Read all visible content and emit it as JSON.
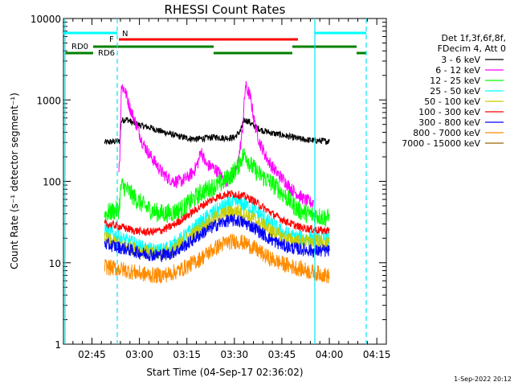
{
  "chart_data": {
    "type": "line",
    "title": "RHESSI Count Rates",
    "xlabel": "Start Time (04-Sep-17 02:36:02)",
    "ylabel": "Count Rate (s⁻¹ detector segment⁻¹)",
    "yscale": "log",
    "ylim": [
      1,
      10000
    ],
    "xlim_minutes": [
      0,
      102
    ],
    "x_ticks": [
      {
        "label": "02:45",
        "min": 9
      },
      {
        "label": "03:00",
        "min": 24
      },
      {
        "label": "03:15",
        "min": 39
      },
      {
        "label": "03:30",
        "min": 54
      },
      {
        "label": "03:45",
        "min": 69
      },
      {
        "label": "04:00",
        "min": 84
      },
      {
        "label": "04:15",
        "min": 99
      }
    ],
    "y_ticks": [
      {
        "label": "1",
        "value": 1
      },
      {
        "label": "10",
        "value": 10
      },
      {
        "label": "100",
        "value": 100
      },
      {
        "label": "1000",
        "value": 1000
      },
      {
        "label": "10000",
        "value": 10000
      }
    ],
    "legend_header": [
      "Det 1f,3f,6f,8f,",
      "FDecim 4, Att 0"
    ],
    "series": [
      {
        "name": "3 - 6 keV",
        "color": "#000000",
        "noise": 0.04,
        "points": [
          [
            13,
            300
          ],
          [
            15,
            305
          ],
          [
            17,
            310
          ],
          [
            17.8,
            310
          ],
          [
            18.3,
            560
          ],
          [
            20,
            580
          ],
          [
            22,
            520
          ],
          [
            25,
            480
          ],
          [
            28,
            450
          ],
          [
            30,
            420
          ],
          [
            33,
            390
          ],
          [
            36,
            360
          ],
          [
            39,
            340
          ],
          [
            42,
            330
          ],
          [
            45,
            340
          ],
          [
            48,
            350
          ],
          [
            51,
            340
          ],
          [
            54,
            345
          ],
          [
            56,
            420
          ],
          [
            57,
            560
          ],
          [
            58.5,
            550
          ],
          [
            60,
            480
          ],
          [
            63,
            420
          ],
          [
            66,
            390
          ],
          [
            69,
            370
          ],
          [
            72,
            350
          ],
          [
            75,
            330
          ],
          [
            78,
            320
          ],
          [
            81,
            315
          ],
          [
            84,
            310
          ]
        ]
      },
      {
        "name": "6 - 12 keV",
        "color": "#ff00ff",
        "noise": 0.08,
        "points": [
          [
            17.5,
            150
          ],
          [
            17.8,
            200
          ],
          [
            18.3,
            1500
          ],
          [
            19.5,
            1300
          ],
          [
            21,
            800
          ],
          [
            23,
            500
          ],
          [
            25,
            300
          ],
          [
            27,
            220
          ],
          [
            29,
            170
          ],
          [
            31,
            130
          ],
          [
            33,
            110
          ],
          [
            35,
            100
          ],
          [
            37,
            100
          ],
          [
            39,
            110
          ],
          [
            41,
            130
          ],
          [
            42.5,
            170
          ],
          [
            43.5,
            240
          ],
          [
            45,
            160
          ],
          [
            47,
            150
          ],
          [
            49,
            130
          ],
          [
            51,
            100
          ],
          [
            53,
            110
          ],
          [
            55,
            150
          ],
          [
            56.5,
            400
          ],
          [
            57.5,
            1500
          ],
          [
            59,
            1100
          ],
          [
            60.5,
            500
          ],
          [
            62,
            300
          ],
          [
            64,
            200
          ],
          [
            66,
            150
          ],
          [
            68,
            120
          ],
          [
            70,
            100
          ],
          [
            72,
            80
          ],
          [
            74,
            70
          ],
          [
            76,
            60
          ],
          [
            78,
            55
          ],
          [
            79,
            55
          ]
        ]
      },
      {
        "name": "12 - 25 keV",
        "color": "#00ff00",
        "noise": 0.12,
        "points": [
          [
            13,
            40
          ],
          [
            15,
            42
          ],
          [
            17.5,
            45
          ],
          [
            18.3,
            90
          ],
          [
            20,
            80
          ],
          [
            23,
            60
          ],
          [
            26,
            48
          ],
          [
            29,
            42
          ],
          [
            32,
            40
          ],
          [
            35,
            42
          ],
          [
            38,
            48
          ],
          [
            41,
            60
          ],
          [
            44,
            75
          ],
          [
            47,
            85
          ],
          [
            50,
            95
          ],
          [
            53,
            120
          ],
          [
            55,
            150
          ],
          [
            56.5,
            200
          ],
          [
            57.5,
            220
          ],
          [
            59,
            160
          ],
          [
            62,
            120
          ],
          [
            65,
            100
          ],
          [
            68,
            80
          ],
          [
            71,
            60
          ],
          [
            74,
            45
          ],
          [
            77,
            40
          ],
          [
            80,
            38
          ],
          [
            84,
            35
          ]
        ]
      },
      {
        "name": "25 - 50 keV",
        "color": "#00ffff",
        "noise": 0.1,
        "points": [
          [
            13,
            26
          ],
          [
            16,
            22
          ],
          [
            19,
            19
          ],
          [
            22,
            17
          ],
          [
            25,
            15
          ],
          [
            28,
            14
          ],
          [
            31,
            14
          ],
          [
            34,
            16
          ],
          [
            37,
            19
          ],
          [
            40,
            24
          ],
          [
            43,
            30
          ],
          [
            46,
            38
          ],
          [
            49,
            45
          ],
          [
            52,
            52
          ],
          [
            55,
            56
          ],
          [
            57,
            52
          ],
          [
            60,
            45
          ],
          [
            63,
            36
          ],
          [
            66,
            29
          ],
          [
            69,
            24
          ],
          [
            72,
            21
          ],
          [
            75,
            20
          ],
          [
            78,
            20
          ],
          [
            81,
            20
          ],
          [
            84,
            20
          ]
        ]
      },
      {
        "name": "50 - 100 keV",
        "color": "#cccc00",
        "noise": 0.09,
        "points": [
          [
            13,
            20
          ],
          [
            16,
            18
          ],
          [
            19,
            16
          ],
          [
            22,
            15
          ],
          [
            25,
            14
          ],
          [
            28,
            13
          ],
          [
            31,
            13
          ],
          [
            34,
            14
          ],
          [
            37,
            17
          ],
          [
            40,
            21
          ],
          [
            43,
            26
          ],
          [
            46,
            32
          ],
          [
            49,
            38
          ],
          [
            52,
            42
          ],
          [
            55,
            43
          ],
          [
            57,
            40
          ],
          [
            60,
            35
          ],
          [
            63,
            29
          ],
          [
            66,
            24
          ],
          [
            69,
            21
          ],
          [
            72,
            19
          ],
          [
            75,
            18
          ],
          [
            78,
            18
          ],
          [
            81,
            18
          ],
          [
            84,
            17
          ]
        ]
      },
      {
        "name": "100 - 300 keV",
        "color": "#ff0000",
        "noise": 0.05,
        "points": [
          [
            13,
            30
          ],
          [
            16,
            29
          ],
          [
            19,
            27
          ],
          [
            22,
            25
          ],
          [
            25,
            24
          ],
          [
            28,
            24
          ],
          [
            31,
            25
          ],
          [
            34,
            28
          ],
          [
            37,
            33
          ],
          [
            40,
            40
          ],
          [
            43,
            48
          ],
          [
            46,
            57
          ],
          [
            49,
            65
          ],
          [
            52,
            70
          ],
          [
            54,
            70
          ],
          [
            57,
            66
          ],
          [
            60,
            58
          ],
          [
            63,
            48
          ],
          [
            66,
            40
          ],
          [
            69,
            34
          ],
          [
            72,
            30
          ],
          [
            75,
            27
          ],
          [
            78,
            26
          ],
          [
            81,
            25
          ],
          [
            84,
            25
          ]
        ]
      },
      {
        "name": "300 - 800 keV",
        "color": "#0000ff",
        "noise": 0.08,
        "points": [
          [
            13,
            17
          ],
          [
            16,
            16
          ],
          [
            19,
            15
          ],
          [
            22,
            14
          ],
          [
            25,
            13
          ],
          [
            28,
            12.5
          ],
          [
            31,
            12.5
          ],
          [
            34,
            13
          ],
          [
            37,
            15
          ],
          [
            40,
            18
          ],
          [
            43,
            22
          ],
          [
            46,
            26
          ],
          [
            49,
            30
          ],
          [
            52,
            33
          ],
          [
            55,
            33
          ],
          [
            58,
            30
          ],
          [
            61,
            26
          ],
          [
            64,
            21
          ],
          [
            67,
            18
          ],
          [
            70,
            16
          ],
          [
            73,
            15
          ],
          [
            76,
            14.5
          ],
          [
            79,
            14
          ],
          [
            82,
            14
          ],
          [
            84,
            14
          ]
        ]
      },
      {
        "name": "800 - 7000 keV",
        "color": "#ff8c00",
        "noise": 0.1,
        "points": [
          [
            13,
            9
          ],
          [
            16,
            8.6
          ],
          [
            19,
            8.2
          ],
          [
            22,
            7.7
          ],
          [
            25,
            7.3
          ],
          [
            28,
            7
          ],
          [
            31,
            7
          ],
          [
            34,
            7.4
          ],
          [
            37,
            8.2
          ],
          [
            40,
            9.5
          ],
          [
            43,
            11
          ],
          [
            46,
            13.5
          ],
          [
            49,
            16
          ],
          [
            52,
            18
          ],
          [
            55,
            18.5
          ],
          [
            58,
            17
          ],
          [
            61,
            14.5
          ],
          [
            64,
            12
          ],
          [
            67,
            10.5
          ],
          [
            70,
            9.5
          ],
          [
            73,
            8.8
          ],
          [
            76,
            8.2
          ],
          [
            79,
            7.6
          ],
          [
            82,
            7.2
          ],
          [
            84,
            6.8
          ]
        ]
      },
      {
        "name": "7000 - 15000 keV",
        "color": "#996600",
        "noise": 0,
        "points": []
      }
    ],
    "annotations": [
      {
        "text": "N",
        "color": "#00e5ee"
      },
      {
        "text": "F",
        "color": "#ff0000"
      },
      {
        "text": "RD0",
        "color": "#008000"
      },
      {
        "text": "RD6",
        "color": "#008000"
      }
    ],
    "footer_date": "1-Sep-2022 20:12"
  }
}
